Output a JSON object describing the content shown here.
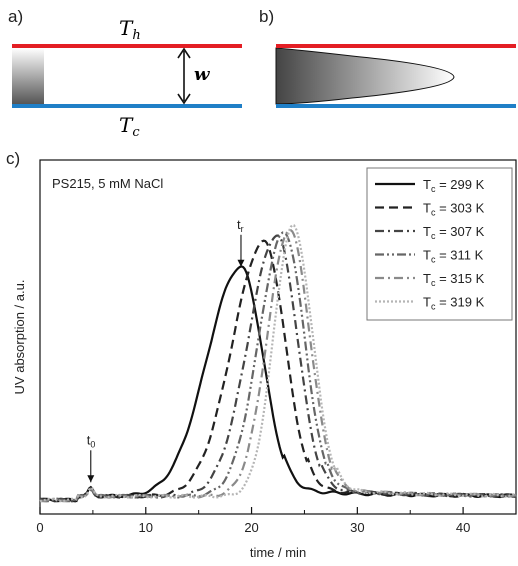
{
  "panel_a": {
    "label": "a)",
    "t_hot": "T",
    "t_hot_sub": "h",
    "t_cold": "T",
    "t_cold_sub": "c",
    "width_label": "w"
  },
  "panel_b": {
    "label": "b)"
  },
  "colors": {
    "hot_wall": "#e31e24",
    "cold_wall": "#1f7fc7"
  },
  "chart_data": {
    "panel_label": "c)",
    "type": "line",
    "title": "PS215, 5 mM NaCl",
    "xlabel": "time / min",
    "ylabel": "UV absorption / a.u.",
    "xlim": [
      0,
      45
    ],
    "xticks": [
      0,
      10,
      20,
      30,
      40
    ],
    "yticks_shown": false,
    "legend_position": "top-right",
    "annotations": [
      {
        "text": "t",
        "sub": "0",
        "x": 4.8
      },
      {
        "text": "t",
        "sub": "r",
        "x": 19.0
      }
    ],
    "series": [
      {
        "name": "T",
        "name_sub": "c",
        "name_suffix": " = 299 K",
        "color": "#111111",
        "dash": "",
        "width": 2.2,
        "peak_x": 19.0,
        "peak_y": 0.73,
        "sigma_left": 3.2,
        "sigma_right": 2.1
      },
      {
        "name": "T",
        "name_sub": "c",
        "name_suffix": " = 303 K",
        "color": "#222222",
        "dash": "9,5",
        "width": 2.2,
        "peak_x": 21.2,
        "peak_y": 0.81,
        "sigma_left": 3.0,
        "sigma_right": 2.0
      },
      {
        "name": "T",
        "name_sub": "c",
        "name_suffix": " = 307 K",
        "color": "#444444",
        "dash": "9,4,2,4",
        "width": 2.2,
        "peak_x": 22.4,
        "peak_y": 0.83,
        "sigma_left": 2.7,
        "sigma_right": 1.95
      },
      {
        "name": "T",
        "name_sub": "c",
        "name_suffix": " = 311 K",
        "color": "#666666",
        "dash": "9,3,2,3,2,3",
        "width": 2.2,
        "peak_x": 23.1,
        "peak_y": 0.84,
        "sigma_left": 2.4,
        "sigma_right": 1.9
      },
      {
        "name": "T",
        "name_sub": "c",
        "name_suffix": " = 315 K",
        "color": "#8a8a8a",
        "dash": "9,4,2,4",
        "width": 2.2,
        "peak_x": 23.6,
        "peak_y": 0.85,
        "sigma_left": 2.1,
        "sigma_right": 1.9
      },
      {
        "name": "T",
        "name_sub": "c",
        "name_suffix": " = 319 K",
        "color": "#b5b5b5",
        "dash": "2,2",
        "width": 2.2,
        "peak_x": 23.9,
        "peak_y": 0.86,
        "sigma_left": 1.8,
        "sigma_right": 1.85
      }
    ]
  }
}
